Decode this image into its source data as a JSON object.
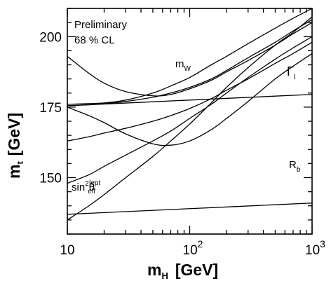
{
  "chart_data": {
    "type": "line",
    "title": "",
    "annotations": [
      "Preliminary",
      "68 % CL"
    ],
    "xlabel": {
      "main": "m",
      "sub": "H",
      "unit": "[GeV]"
    },
    "ylabel": {
      "main": "m",
      "sub": "t",
      "unit": "[GeV]"
    },
    "x_scale": "log",
    "xlim": [
      10,
      1000
    ],
    "ylim": [
      130,
      210
    ],
    "x_ticks": [
      {
        "value": 10,
        "base": "10",
        "exp": ""
      },
      {
        "value": 100,
        "base": "10",
        "exp": "2"
      },
      {
        "value": 1000,
        "base": "10",
        "exp": "3"
      }
    ],
    "y_ticks": [
      150,
      175,
      200
    ],
    "grid": false,
    "legend": "none",
    "series": [
      {
        "name": "mW",
        "label_main": "m",
        "label_sub": "W",
        "label_sup": "",
        "x": [
          10,
          15,
          20,
          30,
          50,
          70,
          100,
          150,
          200,
          300,
          500,
          700,
          1000
        ],
        "y": [
          193,
          187,
          183.5,
          180.5,
          179,
          179.5,
          181.5,
          184.5,
          187.5,
          191.5,
          197,
          201,
          205
        ]
      },
      {
        "name": "mW",
        "label_main": "",
        "label_sub": "",
        "label_sup": "",
        "x": [
          10,
          20,
          30,
          50,
          70,
          100,
          150,
          200,
          300,
          500,
          700,
          1000
        ],
        "y": [
          176,
          176.5,
          177.5,
          180,
          182.5,
          185.5,
          190,
          193,
          197.5,
          203,
          206.5,
          210
        ]
      },
      {
        "name": "Γl",
        "label_main": "Γ",
        "label_sub": "l",
        "label_sup": "",
        "x": [
          10,
          15,
          20,
          30,
          50,
          70,
          100,
          150,
          200,
          300,
          500,
          700,
          1000
        ],
        "y": [
          175,
          172,
          169.5,
          165.5,
          162,
          161.5,
          163,
          167,
          171,
          177,
          185,
          189.5,
          194
        ]
      },
      {
        "name": "Γl",
        "label_main": "",
        "label_sub": "",
        "label_sup": "",
        "x": [
          10,
          15,
          20,
          30,
          50,
          70,
          100,
          150,
          200,
          300,
          500,
          700,
          1000
        ],
        "y": [
          175.5,
          175.8,
          176.2,
          177,
          178.5,
          180,
          182,
          185,
          188,
          192.5,
          198,
          202,
          206
        ]
      },
      {
        "name": "Rb",
        "label_main": "R",
        "label_sub": "b",
        "label_sup": "",
        "x": [
          10,
          100,
          1000
        ],
        "y": [
          175.5,
          177.5,
          179.5
        ]
      },
      {
        "name": "Rb",
        "label_main": "",
        "label_sub": "",
        "label_sup": "",
        "x": [
          10,
          100,
          1000
        ],
        "y": [
          137,
          139,
          141
        ]
      },
      {
        "name": "sin2θeff",
        "label_main": "sin",
        "label_sub": "eff",
        "label_sup": "2",
        "label_theta": "θ",
        "label_sup2": "lept",
        "x": [
          10,
          15,
          20,
          30,
          50,
          70,
          100,
          150,
          200,
          300,
          500,
          700,
          1000
        ],
        "y": [
          148,
          151,
          154,
          158,
          163,
          166.5,
          171,
          176,
          180,
          185.5,
          192,
          196,
          200
        ]
      },
      {
        "name": "sin2θeff",
        "label_main": "",
        "label_sub": "",
        "label_sup": "",
        "x": [
          10,
          15,
          20,
          30,
          50,
          70,
          100,
          150,
          200,
          300,
          500,
          700,
          1000
        ],
        "y": [
          163,
          164.5,
          165.8,
          167.5,
          170,
          172,
          174.5,
          178,
          181,
          185,
          190.5,
          194,
          198
        ]
      },
      {
        "name": "steep",
        "label_main": "",
        "label_sub": "",
        "label_sup": "",
        "x": [
          10,
          15,
          20,
          30,
          50,
          70,
          100,
          150,
          200,
          300,
          500,
          700,
          1000
        ],
        "y": [
          135,
          140,
          144,
          150,
          157.5,
          163,
          169,
          176.5,
          182,
          189,
          197,
          201.5,
          207
        ]
      }
    ]
  }
}
